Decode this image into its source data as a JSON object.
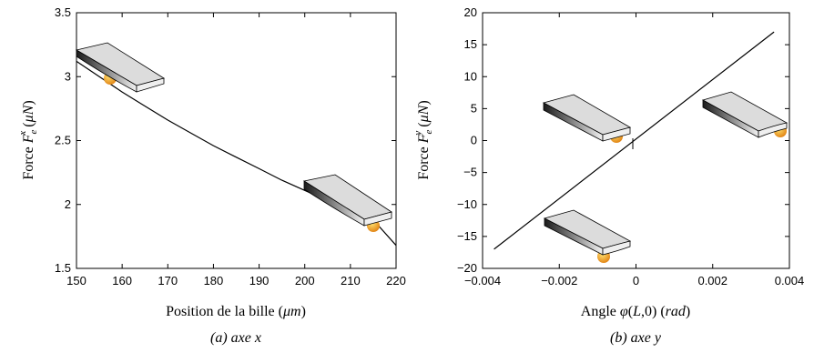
{
  "chart_data": [
    {
      "type": "line",
      "xlabel": "Position de la bille (µm)",
      "ylabel": "Force F_e^x (µN)",
      "caption": "(a) axe x",
      "xlim": [
        150,
        220
      ],
      "ylim": [
        1.5,
        3.5
      ],
      "xticks": [
        "150",
        "160",
        "170",
        "180",
        "190",
        "200",
        "210",
        "220"
      ],
      "yticks": [
        "1.5",
        "2",
        "2.5",
        "3",
        "3.5"
      ],
      "x": [
        150,
        155,
        160,
        165,
        170,
        175,
        180,
        185,
        190,
        195,
        200,
        205,
        210,
        215,
        220
      ],
      "series": [
        {
          "values": [
            3.12,
            3.0,
            2.88,
            2.77,
            2.66,
            2.56,
            2.46,
            2.37,
            2.28,
            2.19,
            2.11,
            2.03,
            1.95,
            1.88,
            1.68
          ]
        }
      ]
    },
    {
      "type": "line",
      "xlabel": "Angle φ(L,0) (rad)",
      "ylabel": "Force F_e^y (µN)",
      "caption": "(b) axe y",
      "xlim": [
        -0.004,
        0.004
      ],
      "ylim": [
        -20,
        20
      ],
      "xticks": [
        "−0.004",
        "−0.002",
        "0",
        "0.002",
        "0.004"
      ],
      "yticks": [
        "−20",
        "−15",
        "−10",
        "−5",
        "0",
        "5",
        "10",
        "15",
        "20"
      ],
      "x": [
        -0.0037,
        0.0036
      ],
      "series": [
        {
          "values": [
            -17,
            17
          ]
        }
      ]
    }
  ],
  "colors": {
    "ball": "#f0a020",
    "beam_dark": "#222222",
    "beam_light": "#e8e8e8"
  }
}
